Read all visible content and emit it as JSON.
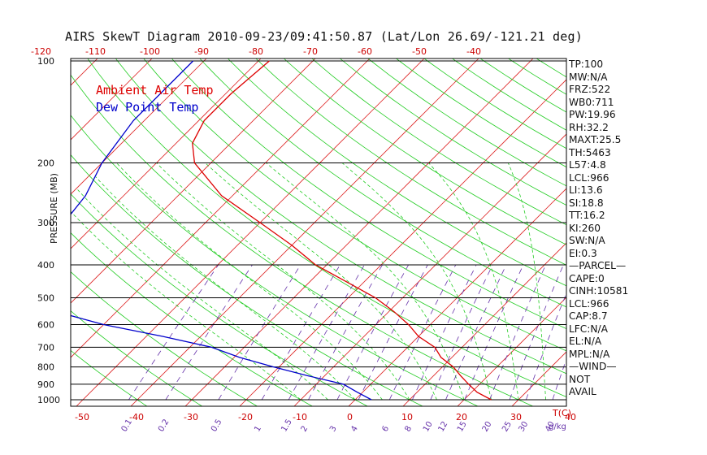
{
  "title": "AIRS SkewT Diagram 2010-09-23/09:41:50.87 (Lat/Lon 26.69/-121.21 deg)",
  "ylabel": "PRESSURE (MB)",
  "xlabel": "T(C)",
  "mixing_label": "g/kg",
  "stats": [
    "TP:100",
    "MW:N/A",
    "FRZ:522",
    "WB0:711",
    "PW:19.96",
    "RH:32.2",
    "MAXT:25.5",
    "TH:5463",
    "L57:4.8",
    "LCL:966",
    "LI:13.6",
    "SI:18.8",
    "TT:16.2",
    "KI:260",
    "SW:N/A",
    "EI:0.3",
    "—PARCEL—",
    "CAPE:0",
    "CINH:10581",
    "LCL:966",
    "CAP:8.7",
    "LFC:N/A",
    "EL:N/A",
    "MPL:N/A",
    "—WIND—",
    "NOT",
    "AVAIL"
  ],
  "colors": {
    "temp": "#dd0000",
    "dew": "#0000cc",
    "isotherm": "#dd2222",
    "dry_adiabat": "#22cc22",
    "moist_adiabat": "#22cc22",
    "mixing_ratio": "#6633aa",
    "isobar": "#000000"
  },
  "chart_data": {
    "type": "line",
    "title": "AIRS SkewT Diagram 2010-09-23/09:41:50.87 (Lat/Lon 26.69/-121.21 deg)",
    "ylabel": "PRESSURE (MB)",
    "xlabel": "T(C)",
    "y_scale": "log",
    "ylim": [
      1000,
      100
    ],
    "pressure_ticks": [
      100,
      200,
      300,
      400,
      500,
      600,
      700,
      800,
      900,
      1000
    ],
    "bottom_temp_ticks": [
      -50,
      -40,
      -30,
      -20,
      -10,
      0,
      10,
      20,
      30,
      40
    ],
    "top_temp_ticks": [
      -120,
      -110,
      -100,
      -90,
      -80,
      -70,
      -60,
      -50,
      -40
    ],
    "mixing_ratio_ticks": [
      "0.1",
      "0.2",
      "0.5",
      "1",
      "1.5",
      "2",
      "3",
      "4",
      "6",
      "8",
      "10",
      "12",
      "15",
      "20",
      "25",
      "30",
      "40"
    ],
    "legend": [
      "Ambient Air Temp",
      "Dew Point Temp"
    ],
    "series": [
      {
        "name": "Ambient Air Temp",
        "pressure": [
          100,
          125,
          150,
          175,
          200,
          250,
          300,
          350,
          400,
          450,
          500,
          550,
          600,
          650,
          700,
          750,
          800,
          850,
          900,
          950,
          1000
        ],
        "values": [
          -78,
          -79,
          -79,
          -77,
          -73,
          -62,
          -50,
          -40,
          -32,
          -23,
          -15,
          -9,
          -4,
          0,
          5,
          8,
          12,
          15,
          18,
          21,
          25
        ]
      },
      {
        "name": "Dew Point Temp",
        "pressure": [
          100,
          150,
          200,
          250,
          300,
          350,
          400,
          450,
          500,
          550,
          600,
          650,
          700,
          750,
          800,
          850,
          900,
          950,
          1000
        ],
        "values": [
          -92,
          -92,
          -90,
          -87,
          -86,
          -85,
          -81,
          -80,
          -78,
          -71,
          -60,
          -47,
          -36,
          -29,
          -21,
          -13,
          -5,
          -1,
          3
        ]
      }
    ]
  }
}
